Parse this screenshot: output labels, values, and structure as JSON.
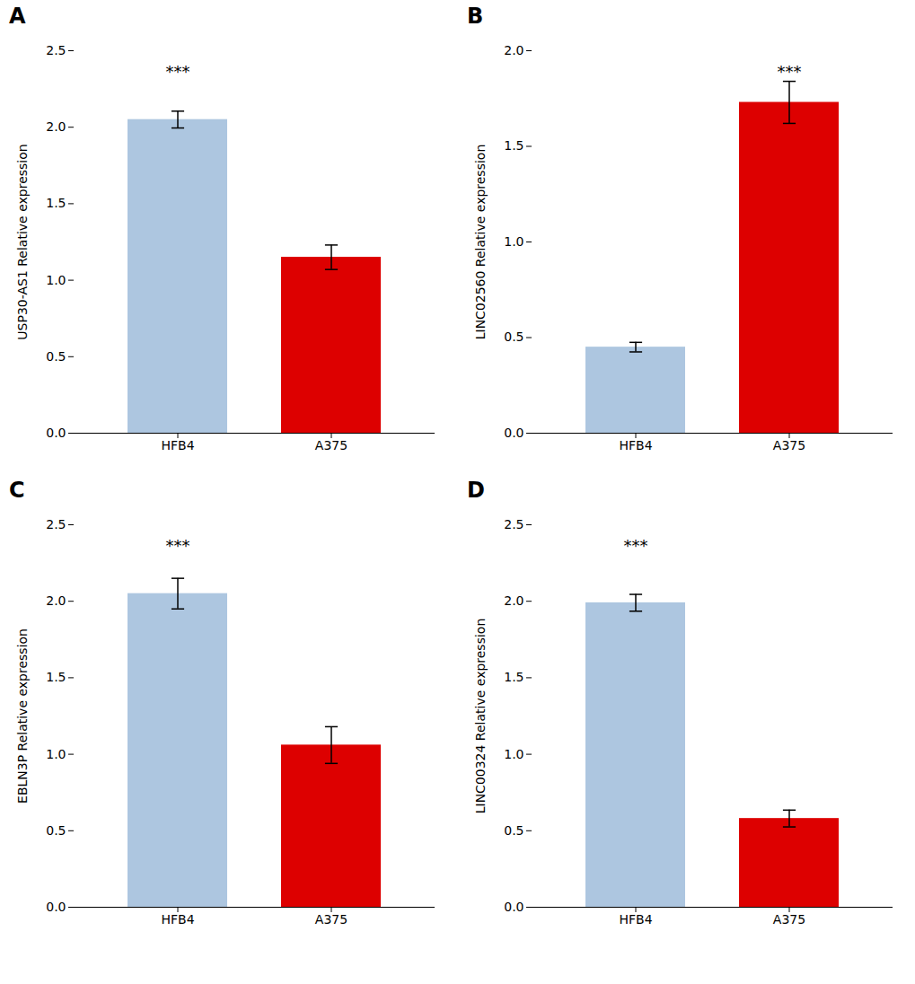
{
  "chart_data": [
    {
      "type": "bar",
      "title": "A",
      "ylabel": "USP30-AS1 Relative expression",
      "categories": [
        "HFB4",
        "A375"
      ],
      "values": [
        2.05,
        1.15
      ],
      "errors": [
        0.055,
        0.08
      ],
      "colors": [
        "#adc6e0",
        "#dd0000"
      ],
      "ylim": [
        0,
        2.5
      ],
      "yticks": [
        {
          "value": 0,
          "label": "0.0"
        },
        0.5,
        {
          "value": 1,
          "label": "1.0"
        },
        1.5,
        {
          "value": 2,
          "label": "2.0"
        },
        2.5
      ],
      "annotations": [
        {
          "text": "***",
          "category": "HFB4",
          "y": 2.325
        }
      ]
    },
    {
      "type": "bar",
      "title": "B",
      "ylabel": "LINC02560 Relative expression",
      "categories": [
        "HFB4",
        "A375"
      ],
      "values": [
        0.45,
        1.73
      ],
      "errors": [
        0.025,
        0.11
      ],
      "colors": [
        "#adc6e0",
        "#dd0000"
      ],
      "ylim": [
        0,
        2.0
      ],
      "yticks": [
        {
          "value": 0,
          "label": "0.0"
        },
        0.5,
        {
          "value": 1,
          "label": "1.0"
        },
        1.5,
        {
          "value": 2,
          "label": "2.0"
        }
      ],
      "annotations": [
        {
          "text": "***",
          "category": "A375",
          "y": 1.86
        }
      ]
    },
    {
      "type": "bar",
      "title": "C",
      "ylabel": "EBLN3P Relative expression",
      "categories": [
        "HFB4",
        "A375"
      ],
      "values": [
        2.05,
        1.06
      ],
      "errors": [
        0.1,
        0.12
      ],
      "colors": [
        "#adc6e0",
        "#dd0000"
      ],
      "ylim": [
        0,
        2.5
      ],
      "yticks": [
        {
          "value": 0,
          "label": "0.0"
        },
        0.5,
        {
          "value": 1,
          "label": "1.0"
        },
        1.5,
        {
          "value": 2,
          "label": "2.0"
        },
        2.5
      ],
      "annotations": [
        {
          "text": "***",
          "category": "HFB4",
          "y": 2.325
        }
      ]
    },
    {
      "type": "bar",
      "title": "D",
      "ylabel": "LINC00324 Relative expression",
      "categories": [
        "HFB4",
        "A375"
      ],
      "values": [
        1.99,
        0.58
      ],
      "errors": [
        0.055,
        0.055
      ],
      "colors": [
        "#adc6e0",
        "#dd0000"
      ],
      "ylim": [
        0,
        2.5
      ],
      "yticks": [
        {
          "value": 0,
          "label": "0.0"
        },
        0.5,
        {
          "value": 1,
          "label": "1.0"
        },
        1.5,
        {
          "value": 2,
          "label": "2.0"
        },
        2.5
      ],
      "annotations": [
        {
          "text": "***",
          "category": "HFB4",
          "y": 2.325
        }
      ]
    }
  ]
}
